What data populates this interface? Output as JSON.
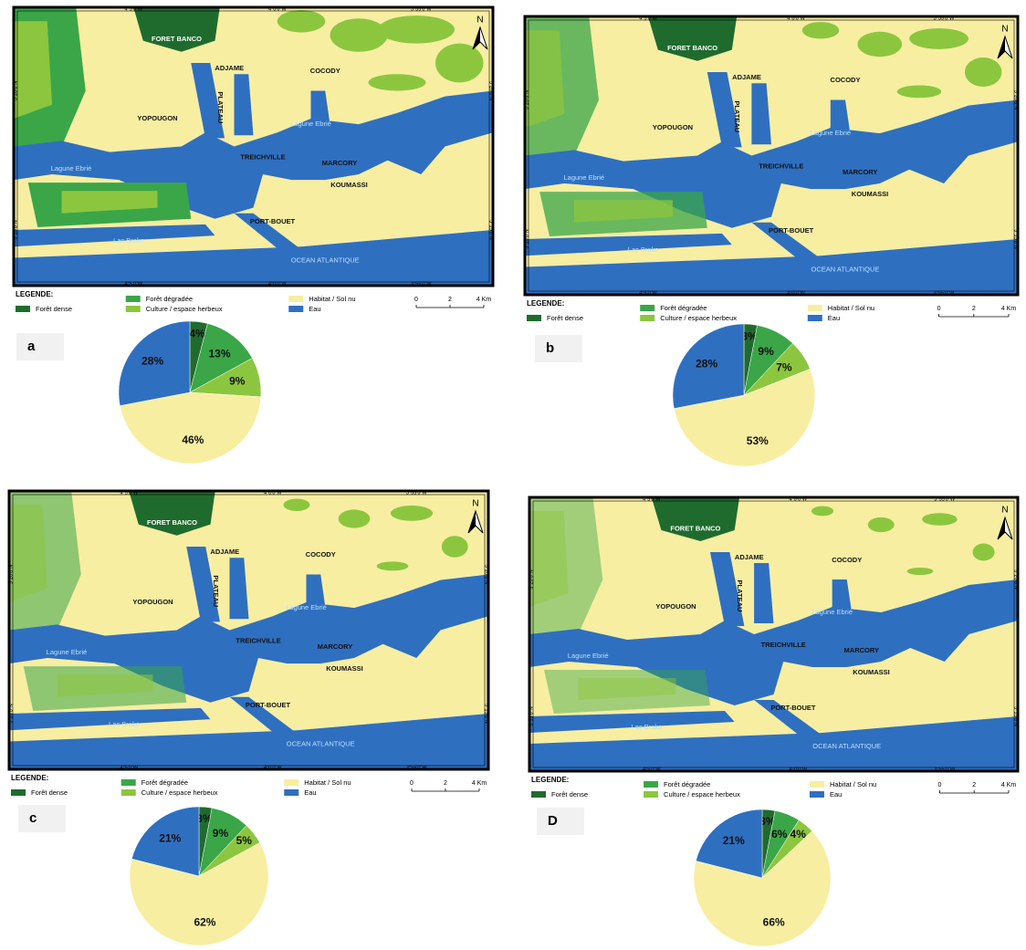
{
  "map": {
    "places": [
      "FORET BANCO",
      "ADJAME",
      "COCODY",
      "YOPOUGON",
      "PLATEAU",
      "TREICHVILLE",
      "MARCORY",
      "KOUMASSI",
      "PORT-BOUET"
    ],
    "water_labels": [
      "Lagune Ebrié",
      "Lagune Ebrié",
      "Lac Brake",
      "OCEAN ATLANTIQUE"
    ],
    "longitudes": [
      "4°5'0\"W",
      "4°0'0\"W",
      "3°55'0\"W"
    ],
    "latitudes": [
      "5°20'0\"N",
      "5°15'0\"N"
    ],
    "north": "N",
    "legend_title": "LEGENDE:",
    "scale_labels": [
      "0",
      "2",
      "4 Km"
    ]
  },
  "chart_data": [
    {
      "type": "pie",
      "label": "a",
      "categories": [
        "Forêt dense",
        "Forêt dégradée",
        "Culture / espace herbeux",
        "Habitat / Sol nu",
        "Eau"
      ],
      "values": [
        4,
        13,
        9,
        46,
        28
      ],
      "value_labels": [
        "4%",
        "13%",
        "9%",
        "46%",
        "28%"
      ],
      "colors": [
        "#1f6b2e",
        "#3aa648",
        "#8cc63f",
        "#f7eea2",
        "#2f6fc0"
      ]
    },
    {
      "type": "pie",
      "label": "b",
      "categories": [
        "Forêt dense",
        "Forêt dégradée",
        "Culture / espace herbeux",
        "Habitat / Sol nu",
        "Eau"
      ],
      "values": [
        3,
        9,
        7,
        53,
        28
      ],
      "value_labels": [
        "3%",
        "9%",
        "7%",
        "53%",
        "28%"
      ],
      "colors": [
        "#1f6b2e",
        "#3aa648",
        "#8cc63f",
        "#f7eea2",
        "#2f6fc0"
      ]
    },
    {
      "type": "pie",
      "label": "c",
      "categories": [
        "Forêt dense",
        "Forêt dégradée",
        "Culture / espace herbeux",
        "Habitat / Sol nu",
        "Eau"
      ],
      "values": [
        3,
        9,
        5,
        62,
        21
      ],
      "value_labels": [
        "3%",
        "9%",
        "5%",
        "62%",
        "21%"
      ],
      "colors": [
        "#1f6b2e",
        "#3aa648",
        "#8cc63f",
        "#f7eea2",
        "#2f6fc0"
      ]
    },
    {
      "type": "pie",
      "label": "D",
      "categories": [
        "Forêt dense",
        "Forêt dégradée",
        "Culture / espace herbeux",
        "Habitat / Sol nu",
        "Eau"
      ],
      "values": [
        3,
        6,
        4,
        66,
        21
      ],
      "value_labels": [
        "3%",
        "6%",
        "4%",
        "66%",
        "21%"
      ],
      "colors": [
        "#1f6b2e",
        "#3aa648",
        "#8cc63f",
        "#f7eea2",
        "#2f6fc0"
      ]
    }
  ]
}
